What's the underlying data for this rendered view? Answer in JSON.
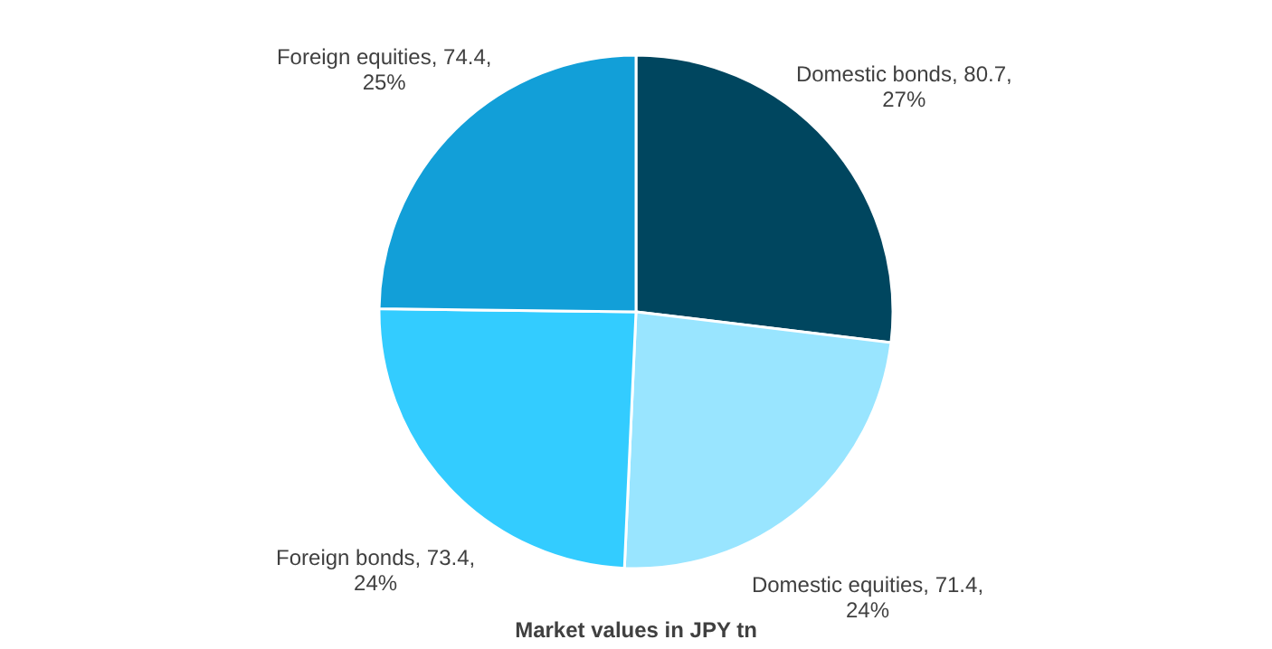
{
  "chart_data": {
    "type": "pie",
    "title": "Market values in JPY tn",
    "categories": [
      "Domestic bonds",
      "Domestic equities",
      "Foreign bonds",
      "Foreign equities"
    ],
    "values": [
      80.7,
      71.4,
      73.4,
      74.4
    ],
    "colors": [
      "#00465f",
      "#99e5ff",
      "#33ccff",
      "#129fd8"
    ],
    "value_labels": [
      "80.7, 27%",
      "71.4, 24%",
      "73.4, 24%",
      "74.4, 25%"
    ],
    "legend": false
  }
}
